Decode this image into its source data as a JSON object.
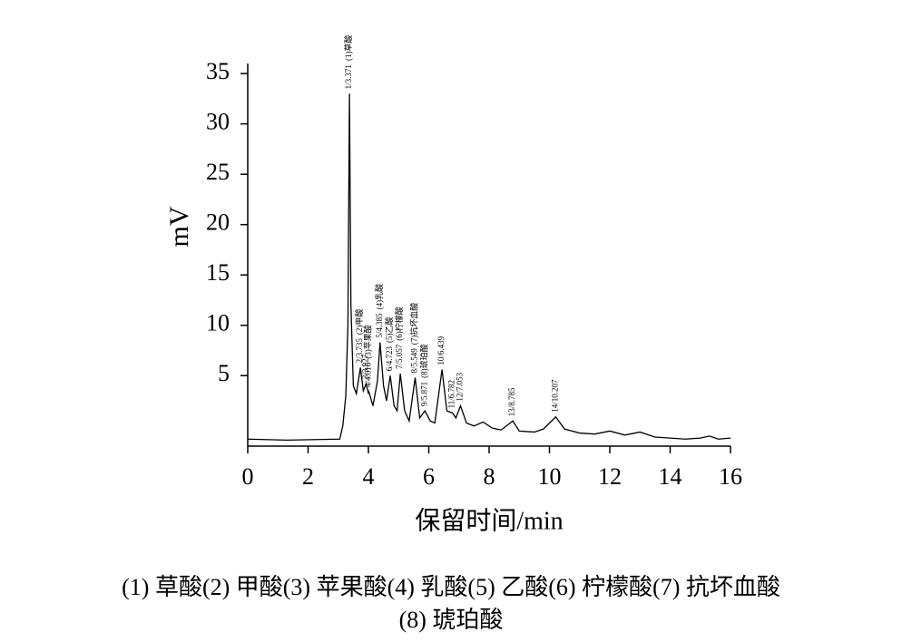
{
  "chart_data": {
    "type": "line",
    "xlabel": "保留时间/min",
    "ylabel": "mV",
    "color": "#000000",
    "xlim": [
      0,
      16
    ],
    "xticks": [
      0,
      2,
      4,
      6,
      8,
      10,
      12,
      14,
      16
    ],
    "ylim": [
      -2,
      36
    ],
    "yticks": [
      5,
      10,
      15,
      20,
      25,
      30,
      35
    ],
    "x": [
      0,
      1.3,
      3.05,
      3.15,
      3.25,
      3.32,
      3.371,
      3.42,
      3.5,
      3.6,
      3.735,
      3.83,
      3.927,
      4.0,
      4.016,
      4.15,
      4.3,
      4.385,
      4.5,
      4.6,
      4.723,
      4.85,
      4.95,
      5.057,
      5.2,
      5.35,
      5.549,
      5.7,
      5.871,
      6.05,
      6.2,
      6.439,
      6.6,
      6.782,
      6.9,
      7.053,
      7.25,
      7.5,
      7.8,
      8.1,
      8.4,
      8.785,
      9.0,
      9.5,
      9.8,
      10.207,
      10.5,
      11.0,
      11.5,
      12.0,
      12.5,
      13.0,
      13.5,
      14.0,
      14.5,
      15.0,
      15.3,
      15.6,
      16.0
    ],
    "values": [
      -1.3,
      -1.4,
      -1.3,
      0,
      3,
      10,
      33,
      12,
      4,
      3.2,
      5.8,
      3.5,
      4.2,
      3.2,
      3.4,
      2,
      4.5,
      8.3,
      4,
      2.5,
      5,
      2,
      1.5,
      5.2,
      1.5,
      0.5,
      4.8,
      0.8,
      1.5,
      0.5,
      0.3,
      5.6,
      1.5,
      1.3,
      0.8,
      2,
      0.3,
      0,
      0.4,
      -0.2,
      -0.4,
      0.5,
      -0.5,
      -0.6,
      -0.3,
      0.9,
      -0.3,
      -0.7,
      -0.8,
      -0.5,
      -0.9,
      -0.6,
      -1.1,
      -1.2,
      -1.3,
      -1.2,
      -1.0,
      -1.3,
      -1.2
    ],
    "peaks": [
      {
        "x": 3.371,
        "y": 33,
        "label": "1/3.371",
        "name": "(1)草酸"
      },
      {
        "x": 3.735,
        "y": 5.8,
        "label": "2/3.735",
        "name": "(2)甲酸"
      },
      {
        "x": 3.927,
        "y": 4.2,
        "label": "3/3.927"
      },
      {
        "x": 4.016,
        "y": 3.4,
        "label": "4/4.016",
        "name": "(3)苹果酸"
      },
      {
        "x": 4.385,
        "y": 8.3,
        "label": "5/4.385",
        "name": "(4)乳酸"
      },
      {
        "x": 4.723,
        "y": 5,
        "label": "6/4.723",
        "name": "(5)乙酸"
      },
      {
        "x": 5.057,
        "y": 5.2,
        "label": "7/5.057",
        "name": "(6)柠檬酸"
      },
      {
        "x": 5.549,
        "y": 4.8,
        "label": "8/5.549",
        "name": "(7)抗坏血酸"
      },
      {
        "x": 5.871,
        "y": 1.5,
        "label": "9/5.871",
        "name": "(8)琥珀酸"
      },
      {
        "x": 6.439,
        "y": 5.6,
        "label": "10/6.439"
      },
      {
        "x": 6.782,
        "y": 1.3,
        "label": "11/6.782"
      },
      {
        "x": 7.053,
        "y": 2,
        "label": "12/7.053"
      },
      {
        "x": 8.785,
        "y": 0.5,
        "label": "13/8.785"
      },
      {
        "x": 10.207,
        "y": 0.9,
        "label": "14/10.207"
      }
    ],
    "caption": [
      "(1) 草酸(2) 甲酸(3) 苹果酸(4) 乳酸(5) 乙酸(6) 柠檬酸(7) 抗坏血酸",
      "(8) 琥珀酸"
    ]
  }
}
